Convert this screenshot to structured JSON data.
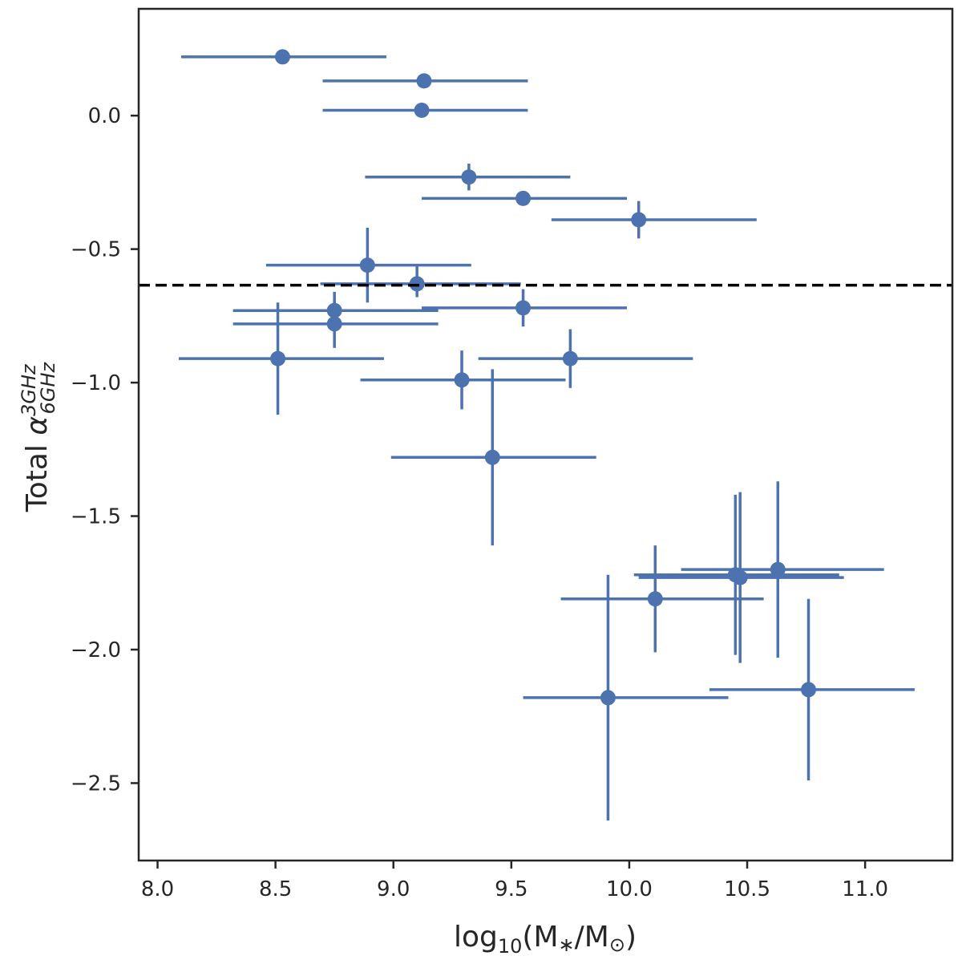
{
  "chart_data": {
    "type": "scatter",
    "title": "",
    "xlabel": {
      "prefix": "log",
      "sub": "10",
      "body": "(M",
      "star": "∗",
      "slash": "/M",
      "sun": "⊙",
      "end": ")"
    },
    "ylabel": {
      "prefix": "Total ",
      "alpha": "α",
      "sup": "3GHz",
      "sub": "6GHz"
    },
    "xlim": [
      7.92,
      11.37
    ],
    "ylim": [
      -2.79,
      0.4
    ],
    "xticks": [
      8.0,
      8.5,
      9.0,
      9.5,
      10.0,
      10.5,
      11.0
    ],
    "xtick_labels": [
      "8.0",
      "8.5",
      "9.0",
      "9.5",
      "10.0",
      "10.5",
      "11.0"
    ],
    "yticks": [
      0.0,
      -0.5,
      -1.0,
      -1.5,
      -2.0,
      -2.5
    ],
    "ytick_labels": [
      "0.0",
      "−0.5",
      "−1.0",
      "−1.5",
      "−2.0",
      "−2.5"
    ],
    "grid": false,
    "reference_line": {
      "y": -0.635,
      "style": "dashed",
      "color": "#000000"
    },
    "series_color": "#4C72B0",
    "points": [
      {
        "x": 8.53,
        "y": 0.22,
        "xerr": [
          0.43,
          0.44
        ],
        "yerr": [
          0.0,
          0.0
        ]
      },
      {
        "x": 9.13,
        "y": 0.13,
        "xerr": [
          0.43,
          0.44
        ],
        "yerr": [
          0.0,
          0.0
        ]
      },
      {
        "x": 9.12,
        "y": 0.02,
        "xerr": [
          0.42,
          0.45
        ],
        "yerr": [
          0.0,
          0.0
        ]
      },
      {
        "x": 9.32,
        "y": -0.23,
        "xerr": [
          0.44,
          0.43
        ],
        "yerr": [
          0.05,
          0.05
        ]
      },
      {
        "x": 9.55,
        "y": -0.31,
        "xerr": [
          0.43,
          0.44
        ],
        "yerr": [
          0.02,
          0.02
        ]
      },
      {
        "x": 10.04,
        "y": -0.39,
        "xerr": [
          0.37,
          0.5
        ],
        "yerr": [
          0.07,
          0.07
        ]
      },
      {
        "x": 8.89,
        "y": -0.56,
        "xerr": [
          0.43,
          0.44
        ],
        "yerr": [
          0.14,
          0.14
        ]
      },
      {
        "x": 9.1,
        "y": -0.63,
        "xerr": [
          0.41,
          0.44
        ],
        "yerr": [
          0.05,
          0.07
        ]
      },
      {
        "x": 9.55,
        "y": -0.72,
        "xerr": [
          0.43,
          0.44
        ],
        "yerr": [
          0.07,
          0.07
        ]
      },
      {
        "x": 8.75,
        "y": -0.73,
        "xerr": [
          0.43,
          0.44
        ],
        "yerr": [
          0.07,
          0.07
        ]
      },
      {
        "x": 8.75,
        "y": -0.78,
        "xerr": [
          0.43,
          0.44
        ],
        "yerr": [
          0.09,
          0.09
        ]
      },
      {
        "x": 8.51,
        "y": -0.91,
        "xerr": [
          0.42,
          0.45
        ],
        "yerr": [
          0.21,
          0.21
        ]
      },
      {
        "x": 9.75,
        "y": -0.91,
        "xerr": [
          0.39,
          0.52
        ],
        "yerr": [
          0.11,
          0.11
        ]
      },
      {
        "x": 9.29,
        "y": -0.99,
        "xerr": [
          0.43,
          0.44
        ],
        "yerr": [
          0.11,
          0.11
        ]
      },
      {
        "x": 9.42,
        "y": -1.28,
        "xerr": [
          0.43,
          0.44
        ],
        "yerr": [
          0.33,
          0.33
        ]
      },
      {
        "x": 10.63,
        "y": -1.7,
        "xerr": [
          0.41,
          0.45
        ],
        "yerr": [
          0.33,
          0.33
        ]
      },
      {
        "x": 10.45,
        "y": -1.72,
        "xerr": [
          0.43,
          0.44
        ],
        "yerr": [
          0.3,
          0.3
        ]
      },
      {
        "x": 10.47,
        "y": -1.73,
        "xerr": [
          0.43,
          0.44
        ],
        "yerr": [
          0.32,
          0.32
        ]
      },
      {
        "x": 10.11,
        "y": -1.81,
        "xerr": [
          0.4,
          0.46
        ],
        "yerr": [
          0.2,
          0.2
        ]
      },
      {
        "x": 9.91,
        "y": -2.18,
        "xerr": [
          0.36,
          0.51
        ],
        "yerr": [
          0.46,
          0.46
        ]
      },
      {
        "x": 10.76,
        "y": -2.15,
        "xerr": [
          0.42,
          0.45
        ],
        "yerr": [
          0.34,
          0.34
        ]
      }
    ]
  }
}
